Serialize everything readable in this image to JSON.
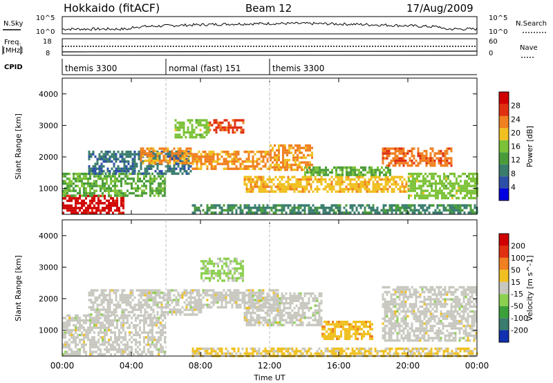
{
  "header": {
    "title": "Hokkaido (fitACF)",
    "beam": "Beam 12",
    "date": "17/Aug/2009"
  },
  "top_panels": {
    "nsky_label": "N.Sky",
    "nsky_ticks": [
      "10^5",
      "10^0"
    ],
    "nsearch_label": "N.Search",
    "nsearch_ticks": [
      "10^5",
      "10^0"
    ],
    "freq_label_1": "Freq.",
    "freq_label_2": "[MHz]",
    "freq_ticks": [
      "18",
      "8"
    ],
    "nave_label": "Nave",
    "nave_ticks": [
      "60",
      "0"
    ],
    "cpid_label": "CPID",
    "cpid_segments": [
      {
        "label": "themis 3300",
        "start": 0,
        "end": 6
      },
      {
        "label": "normal (fast) 151",
        "start": 6,
        "end": 12
      },
      {
        "label": "themis 3300",
        "start": 12,
        "end": 24
      }
    ]
  },
  "x_axis": {
    "label": "Time UT",
    "ticks": [
      "00:00",
      "04:00",
      "08:00",
      "12:00",
      "16:00",
      "20:00",
      "00:00"
    ]
  },
  "chart_data": [
    {
      "type": "heatmap",
      "name": "power",
      "ylabel": "Slant Range [km]",
      "yticks": [
        "4000",
        "3000",
        "2000",
        "1000"
      ],
      "xlim": [
        0,
        24
      ],
      "ylim": [
        180,
        4500
      ],
      "colorbar": {
        "label": "Power [dB]",
        "ticks": [
          "28",
          "24",
          "20",
          "16",
          "12",
          "8",
          "4"
        ],
        "colors": [
          "#0000e0",
          "#2c4fa8",
          "#3a7d6e",
          "#4a9c3a",
          "#7cc238",
          "#f0c020",
          "#f08020",
          "#e03010",
          "#d00000"
        ],
        "range": [
          0,
          32
        ]
      },
      "regions": [
        {
          "t": [
            0.0,
            3.5
          ],
          "r": [
            200,
            800
          ],
          "level": 30
        },
        {
          "t": [
            0.0,
            6.0
          ],
          "r": [
            800,
            1500
          ],
          "level": 14
        },
        {
          "t": [
            1.5,
            7.5
          ],
          "r": [
            1500,
            2200
          ],
          "level": 8
        },
        {
          "t": [
            4.5,
            7.5
          ],
          "r": [
            1800,
            2300
          ],
          "level": 22
        },
        {
          "t": [
            6.5,
            8.5
          ],
          "r": [
            2600,
            3200
          ],
          "level": 16
        },
        {
          "t": [
            7.5,
            12.0
          ],
          "r": [
            1600,
            2200
          ],
          "level": 22
        },
        {
          "t": [
            8.5,
            10.5
          ],
          "r": [
            2800,
            3200
          ],
          "level": 26
        },
        {
          "t": [
            12.0,
            14.5
          ],
          "r": [
            1600,
            2400
          ],
          "level": 22
        },
        {
          "t": [
            10.5,
            20.0
          ],
          "r": [
            900,
            1400
          ],
          "level": 20
        },
        {
          "t": [
            14.0,
            19.0
          ],
          "r": [
            1400,
            1700
          ],
          "level": 14
        },
        {
          "t": [
            18.5,
            22.5
          ],
          "r": [
            1700,
            2300
          ],
          "level": 24
        },
        {
          "t": [
            20.0,
            24.0
          ],
          "r": [
            700,
            1500
          ],
          "level": 16
        },
        {
          "t": [
            7.5,
            24.0
          ],
          "r": [
            200,
            500
          ],
          "level": 10
        }
      ]
    },
    {
      "type": "heatmap",
      "name": "velocity",
      "ylabel": "Slant Range [km]",
      "yticks": [
        "4000",
        "3000",
        "2000",
        "1000"
      ],
      "xlim": [
        0,
        24
      ],
      "ylim": [
        180,
        4500
      ],
      "colorbar": {
        "label": "Velocity [m s^-1]",
        "ticks": [
          "200",
          "100",
          "50",
          "15",
          "-15",
          "-50",
          "-100",
          "-200"
        ],
        "colors": [
          "#1030b0",
          "#3a7d6e",
          "#3ca03a",
          "#8cd050",
          "#c8c8c0",
          "#f0c020",
          "#f08020",
          "#e03010",
          "#d00000"
        ],
        "range": [
          -250,
          250
        ]
      },
      "regions": [
        {
          "t": [
            0.0,
            6.0
          ],
          "r": [
            200,
            1500
          ],
          "level": 0
        },
        {
          "t": [
            1.5,
            8.0
          ],
          "r": [
            1500,
            2300
          ],
          "level": 0
        },
        {
          "t": [
            7.5,
            12.5
          ],
          "r": [
            1700,
            2300
          ],
          "level": 0
        },
        {
          "t": [
            8.0,
            10.5
          ],
          "r": [
            2600,
            3300
          ],
          "level": -40
        },
        {
          "t": [
            10.5,
            15.0
          ],
          "r": [
            1200,
            2200
          ],
          "level": 0
        },
        {
          "t": [
            15.0,
            18.0
          ],
          "r": [
            700,
            1300
          ],
          "level": 60
        },
        {
          "t": [
            18.5,
            24.0
          ],
          "r": [
            700,
            2400
          ],
          "level": 0
        },
        {
          "t": [
            7.5,
            24.0
          ],
          "r": [
            200,
            450
          ],
          "level": 40
        }
      ]
    }
  ]
}
